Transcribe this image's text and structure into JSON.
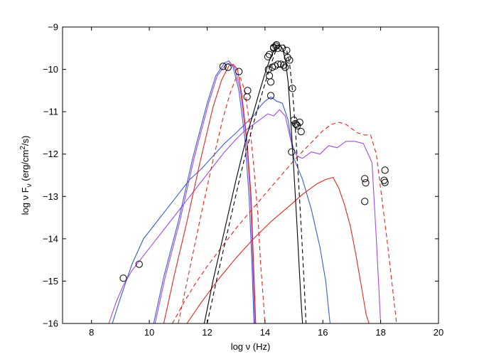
{
  "chart_data": {
    "type": "line",
    "xlabel": "log ν (Hz)",
    "ylabel": {
      "prefix": "log ν F",
      "sub": "ν",
      "mid": " (erg/cm",
      "sup": "2",
      "suffix": "/s)"
    },
    "xlim": [
      7,
      20
    ],
    "ylim": [
      -16,
      -9
    ],
    "xticks": [
      8,
      10,
      12,
      14,
      16,
      18,
      20
    ],
    "yticks": [
      -9,
      -10,
      -11,
      -12,
      -13,
      -14,
      -15,
      -16
    ],
    "xtick_labels": [
      "8",
      "10",
      "12",
      "14",
      "16",
      "18",
      "20"
    ],
    "ytick_labels": [
      "−9",
      "−10",
      "−11",
      "−12",
      "−13",
      "−14",
      "−15",
      "−16"
    ],
    "grid": false,
    "colors": {
      "blue": "#3b5bd9",
      "red": "#e8251c",
      "purple": "#a64ae0",
      "black": "#000000"
    },
    "series": [
      {
        "color": "blue",
        "dash": false,
        "x": [
          8.72,
          9.0,
          9.4,
          9.8,
          10.2,
          10.6,
          11.0,
          11.4,
          11.8,
          12.2,
          12.6,
          13.0,
          13.3,
          13.6,
          13.8,
          14.0,
          14.2,
          14.4,
          14.6,
          14.8,
          15.0,
          15.3,
          15.6,
          15.9,
          16.1,
          16.25
        ],
        "y": [
          -16.0,
          -15.4,
          -14.6,
          -14.0,
          -13.65,
          -13.3,
          -12.95,
          -12.6,
          -12.35,
          -12.05,
          -11.75,
          -11.5,
          -11.3,
          -11.1,
          -10.9,
          -10.75,
          -10.65,
          -10.75,
          -10.8,
          -11.2,
          -12.1,
          -12.6,
          -13.3,
          -14.2,
          -15.0,
          -16.0
        ]
      },
      {
        "color": "purple",
        "dash": false,
        "x": [
          8.6,
          8.85,
          9.1,
          9.4,
          9.8,
          10.2,
          10.6,
          11.0,
          11.4,
          11.8,
          12.2,
          12.6,
          13.0,
          13.3,
          13.6,
          13.9,
          14.1,
          14.3,
          14.5,
          14.7,
          14.9,
          15.1,
          15.3,
          15.6,
          15.9,
          16.2,
          16.5,
          16.8,
          17.1,
          17.4,
          17.7,
          17.85,
          18.0
        ],
        "y": [
          -16.0,
          -15.5,
          -15.1,
          -14.75,
          -14.4,
          -14.05,
          -13.7,
          -13.35,
          -13.0,
          -12.65,
          -12.3,
          -11.95,
          -11.65,
          -11.45,
          -11.3,
          -11.15,
          -11.05,
          -11.1,
          -10.95,
          -11.1,
          -11.7,
          -12.05,
          -12.1,
          -11.95,
          -12.0,
          -11.8,
          -11.85,
          -11.7,
          -11.7,
          -11.75,
          -12.2,
          -14.0,
          -16.0
        ]
      },
      {
        "color": "blue",
        "dash": false,
        "x": [
          10.15,
          10.5,
          11.0,
          11.5,
          12.0,
          12.3,
          12.6,
          12.75,
          12.9,
          13.1,
          13.3,
          13.45,
          13.55,
          13.62
        ],
        "y": [
          -16.0,
          -14.9,
          -13.6,
          -12.1,
          -10.8,
          -10.15,
          -9.85,
          -9.8,
          -9.95,
          -10.5,
          -11.6,
          -13.0,
          -14.6,
          -16.0
        ]
      },
      {
        "color": "purple",
        "dash": false,
        "x": [
          10.2,
          10.55,
          11.05,
          11.55,
          12.05,
          12.35,
          12.65,
          12.8,
          12.95,
          13.15,
          13.35,
          13.5,
          13.58,
          13.65
        ],
        "y": [
          -16.0,
          -14.9,
          -13.6,
          -12.1,
          -10.8,
          -10.15,
          -9.88,
          -9.85,
          -9.95,
          -10.5,
          -11.6,
          -13.0,
          -14.6,
          -16.0
        ]
      },
      {
        "color": "red",
        "dash": false,
        "x": [
          10.5,
          10.85,
          11.3,
          11.75,
          12.2,
          12.5,
          12.75,
          12.9,
          13.05,
          13.2,
          13.38,
          13.52,
          13.6,
          13.68
        ],
        "y": [
          -16.0,
          -14.9,
          -13.6,
          -12.2,
          -10.9,
          -10.25,
          -9.92,
          -9.88,
          -10.0,
          -10.6,
          -11.7,
          -13.0,
          -14.5,
          -16.0
        ]
      },
      {
        "color": "red",
        "dash": true,
        "x": [
          11.0,
          11.4,
          11.8,
          12.2,
          12.55,
          12.8,
          13.0,
          13.15,
          13.3,
          13.45,
          13.6,
          13.75,
          13.85,
          13.95,
          14.0
        ],
        "y": [
          -16.0,
          -14.7,
          -13.4,
          -12.15,
          -11.15,
          -10.55,
          -10.2,
          -10.2,
          -10.5,
          -11.2,
          -12.2,
          -13.4,
          -14.6,
          -15.5,
          -16.0
        ]
      },
      {
        "color": "red",
        "dash": false,
        "x": [
          11.3,
          11.8,
          12.4,
          13.0,
          13.6,
          14.2,
          14.8,
          15.3,
          15.8,
          16.1,
          16.35,
          16.55,
          16.75,
          16.95,
          17.15,
          17.35,
          17.5,
          17.6
        ],
        "y": [
          -16.0,
          -15.5,
          -14.95,
          -14.45,
          -14.0,
          -13.6,
          -13.25,
          -12.95,
          -12.7,
          -12.6,
          -12.55,
          -12.8,
          -13.2,
          -13.7,
          -14.4,
          -15.2,
          -15.8,
          -16.0
        ]
      },
      {
        "color": "red",
        "dash": true,
        "x": [
          10.8,
          11.2,
          11.6,
          12.0,
          12.5,
          13.0,
          13.5,
          14.0,
          14.5,
          15.0,
          15.5,
          16.0,
          16.3,
          16.55,
          16.8,
          17.0,
          17.2,
          17.45,
          17.65,
          17.85,
          18.05,
          18.25,
          18.45,
          18.55
        ],
        "y": [
          -16.0,
          -15.5,
          -15.05,
          -14.65,
          -14.2,
          -13.75,
          -13.35,
          -12.95,
          -12.55,
          -12.15,
          -11.8,
          -11.45,
          -11.3,
          -11.25,
          -11.3,
          -11.4,
          -11.5,
          -11.55,
          -11.55,
          -12.0,
          -13.1,
          -14.2,
          -15.4,
          -16.0
        ]
      },
      {
        "color": "black",
        "dash": false,
        "x": [
          11.9,
          12.2,
          12.6,
          13.0,
          13.4,
          13.8,
          14.0,
          14.2,
          14.35,
          14.5,
          14.6,
          14.7,
          14.8,
          14.9,
          15.0,
          15.1,
          15.2,
          15.25,
          15.3
        ],
        "y": [
          -16.0,
          -15.0,
          -13.8,
          -12.6,
          -11.5,
          -10.55,
          -10.1,
          -9.7,
          -9.5,
          -9.42,
          -9.5,
          -9.75,
          -10.3,
          -11.3,
          -12.4,
          -13.6,
          -14.9,
          -15.5,
          -16.0
        ]
      },
      {
        "color": "black",
        "dash": true,
        "x": [
          12.0,
          12.35,
          12.75,
          13.15,
          13.55,
          13.95,
          14.15,
          14.35,
          14.5,
          14.65,
          14.75,
          14.85,
          14.95,
          15.05,
          15.15,
          15.25,
          15.35,
          15.42
        ],
        "y": [
          -16.0,
          -14.9,
          -13.7,
          -12.5,
          -11.4,
          -10.45,
          -10.0,
          -9.6,
          -9.45,
          -9.42,
          -9.55,
          -9.85,
          -10.5,
          -11.4,
          -12.5,
          -13.7,
          -15.0,
          -16.0
        ]
      }
    ],
    "points": {
      "x": [
        9.1,
        9.65,
        12.55,
        12.72,
        13.1,
        13.4,
        13.38,
        14.1,
        14.15,
        14.12,
        14.15,
        14.2,
        14.25,
        14.35,
        14.45,
        14.2,
        14.3,
        14.4,
        14.3,
        14.38,
        14.45,
        14.55,
        14.65,
        14.7,
        14.6,
        14.75,
        14.78,
        14.85,
        14.95,
        15.0,
        15.05,
        15.08,
        15.12,
        15.2,
        15.25,
        14.92,
        17.45,
        17.48,
        17.45,
        18.15,
        18.12,
        18.15
      ],
      "y": [
        -14.93,
        -14.6,
        -9.93,
        -9.95,
        -10.05,
        -10.5,
        -10.65,
        -9.7,
        -9.65,
        -10.0,
        -10.15,
        -10.3,
        -9.95,
        -9.92,
        -9.88,
        -10.62,
        -9.5,
        -9.42,
        -9.48,
        -9.45,
        -9.5,
        -9.88,
        -9.9,
        -9.95,
        -9.5,
        -9.55,
        -9.72,
        -9.78,
        -10.45,
        -11.2,
        -11.28,
        -11.3,
        -11.33,
        -11.25,
        -11.47,
        -11.95,
        -12.58,
        -12.68,
        -13.12,
        -12.38,
        -12.62,
        -12.67
      ]
    }
  }
}
